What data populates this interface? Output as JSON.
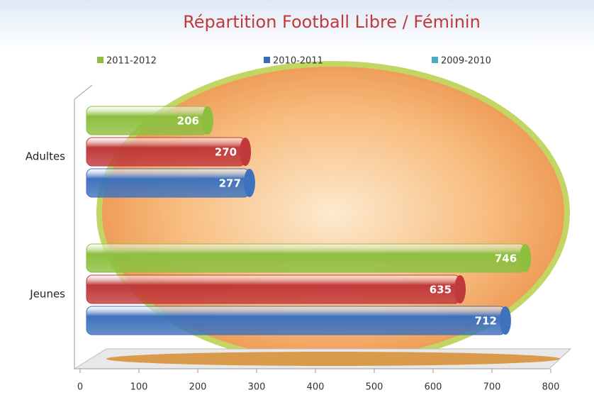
{
  "chart_data": {
    "type": "bar",
    "orientation": "horizontal",
    "title": "Répartition Football Libre / Féminin",
    "categories": [
      "Adultes",
      "Jeunes"
    ],
    "series": [
      {
        "name": "2011-2012",
        "color": "#8dbf3f",
        "legend_color": "#8dbf3f",
        "values": [
          206,
          746
        ]
      },
      {
        "name": "2010-2011",
        "color": "#c0393b",
        "legend_color": "#3a6bb5",
        "values": [
          270,
          635
        ]
      },
      {
        "name": "2009-2010",
        "color": "#3f72bd",
        "legend_color": "#4bacc6",
        "values": [
          277,
          712
        ]
      }
    ],
    "xlim": [
      0,
      800
    ],
    "xticks": [
      0,
      100,
      200,
      300,
      400,
      500,
      600,
      700,
      800
    ]
  }
}
